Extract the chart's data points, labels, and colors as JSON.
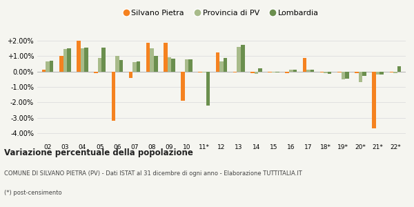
{
  "categories": [
    "02",
    "03",
    "04",
    "05",
    "06",
    "07",
    "08",
    "09",
    "10",
    "11*",
    "12",
    "13",
    "14",
    "15",
    "16",
    "17",
    "18*",
    "19*",
    "20*",
    "21*",
    "22*"
  ],
  "silvano_pietra": [
    0.1,
    1.0,
    2.0,
    -0.1,
    -3.2,
    -0.4,
    1.85,
    1.85,
    -1.9,
    -0.05,
    1.25,
    -0.05,
    -0.1,
    -0.05,
    -0.1,
    0.9,
    -0.05,
    -0.05,
    -0.1,
    -3.7,
    -0.05
  ],
  "provincia_pv": [
    0.65,
    1.45,
    1.5,
    0.9,
    1.0,
    0.6,
    1.5,
    0.95,
    0.8,
    -0.05,
    0.65,
    1.6,
    -0.15,
    -0.05,
    0.1,
    0.1,
    -0.1,
    -0.5,
    -0.7,
    -0.2,
    -0.1
  ],
  "lombardia": [
    0.7,
    1.5,
    1.55,
    1.55,
    0.75,
    0.65,
    1.0,
    0.85,
    0.8,
    -2.2,
    0.9,
    1.75,
    0.2,
    -0.05,
    0.1,
    0.1,
    -0.15,
    -0.45,
    -0.3,
    -0.2,
    0.35
  ],
  "color_silvano": "#f58220",
  "color_provincia": "#a8bb8a",
  "color_lombardia": "#6b8f4e",
  "title": "Variazione percentuale della popolazione",
  "subtitle": "COMUNE DI SILVANO PIETRA (PV) - Dati ISTAT al 31 dicembre di ogni anno - Elaborazione TUTTITALIA.IT",
  "footnote": "(*) post-censimento",
  "ylim": [
    -4.5,
    2.5
  ],
  "yticks": [
    -4.0,
    -3.0,
    -2.0,
    -1.0,
    0.0,
    1.0,
    2.0
  ],
  "bg_color": "#f5f5f0",
  "grid_color": "#dddddd"
}
